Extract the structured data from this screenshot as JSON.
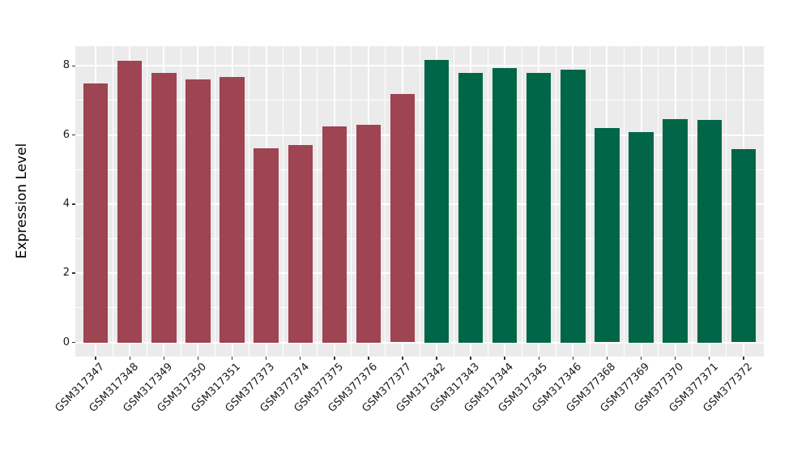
{
  "chart_data": {
    "type": "bar",
    "title": "",
    "xlabel": "",
    "ylabel": "Expression Level",
    "ylim": [
      -0.41,
      8.57
    ],
    "yticks": [
      0,
      2,
      4,
      6,
      8
    ],
    "grid": true,
    "legend": false,
    "plot_background": "#EBEBEB",
    "grid_color": "#FFFFFF",
    "colors": {
      "red_group": "#9E4452",
      "green_group": "#016647"
    },
    "categories": [
      "GSM317347",
      "GSM317348",
      "GSM317349",
      "GSM317350",
      "GSM317351",
      "GSM377373",
      "GSM377374",
      "GSM377375",
      "GSM377376",
      "GSM377377",
      "GSM317342",
      "GSM317343",
      "GSM317344",
      "GSM317345",
      "GSM317346",
      "GSM377368",
      "GSM377369",
      "GSM377370",
      "GSM377371",
      "GSM377372"
    ],
    "values": [
      7.48,
      8.15,
      7.8,
      7.6,
      7.69,
      5.62,
      5.7,
      6.24,
      6.3,
      7.19,
      8.17,
      7.8,
      7.94,
      7.8,
      7.88,
      6.21,
      6.08,
      6.46,
      6.44,
      5.6
    ],
    "bars": [
      {
        "label": "GSM317347",
        "value": 7.48,
        "color": "#9E4452"
      },
      {
        "label": "GSM317348",
        "value": 8.15,
        "color": "#9E4452"
      },
      {
        "label": "GSM317349",
        "value": 7.8,
        "color": "#9E4452"
      },
      {
        "label": "GSM317350",
        "value": 7.6,
        "color": "#9E4452"
      },
      {
        "label": "GSM317351",
        "value": 7.69,
        "color": "#9E4452"
      },
      {
        "label": "GSM377373",
        "value": 5.62,
        "color": "#9E4452"
      },
      {
        "label": "GSM377374",
        "value": 5.7,
        "color": "#9E4452"
      },
      {
        "label": "GSM377375",
        "value": 6.24,
        "color": "#9E4452"
      },
      {
        "label": "GSM377376",
        "value": 6.3,
        "color": "#9E4452"
      },
      {
        "label": "GSM377377",
        "value": 7.19,
        "color": "#9E4452"
      },
      {
        "label": "GSM317342",
        "value": 8.17,
        "color": "#016647"
      },
      {
        "label": "GSM317343",
        "value": 7.8,
        "color": "#016647"
      },
      {
        "label": "GSM317344",
        "value": 7.94,
        "color": "#016647"
      },
      {
        "label": "GSM317345",
        "value": 7.8,
        "color": "#016647"
      },
      {
        "label": "GSM317346",
        "value": 7.88,
        "color": "#016647"
      },
      {
        "label": "GSM377368",
        "value": 6.21,
        "color": "#016647"
      },
      {
        "label": "GSM377369",
        "value": 6.08,
        "color": "#016647"
      },
      {
        "label": "GSM377370",
        "value": 6.46,
        "color": "#016647"
      },
      {
        "label": "GSM377371",
        "value": 6.44,
        "color": "#016647"
      },
      {
        "label": "GSM377372",
        "value": 5.6,
        "color": "#016647"
      }
    ]
  }
}
